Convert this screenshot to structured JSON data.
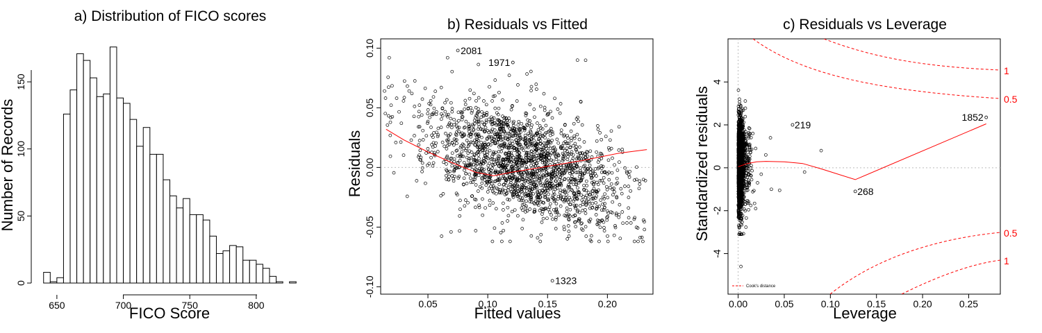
{
  "chart_data": [
    {
      "type": "bar",
      "title": "a) Distribution of FICO scores",
      "xlabel": "FICO Score",
      "ylabel": "Number of Records",
      "xlim": [
        637,
        833
      ],
      "ylim": [
        0,
        180
      ],
      "x_ticks": [
        650,
        700,
        750,
        800
      ],
      "y_ticks": [
        0,
        50,
        100,
        150
      ],
      "bin_width": 5,
      "bins_start": [
        640,
        645,
        650,
        655,
        660,
        665,
        670,
        675,
        680,
        685,
        690,
        695,
        700,
        705,
        710,
        715,
        720,
        725,
        730,
        735,
        740,
        745,
        750,
        755,
        760,
        765,
        770,
        775,
        780,
        785,
        790,
        795,
        800,
        805,
        810,
        815,
        820,
        825
      ],
      "values": [
        8,
        1,
        4,
        126,
        144,
        171,
        166,
        153,
        139,
        141,
        176,
        138,
        134,
        122,
        102,
        116,
        96,
        96,
        77,
        65,
        56,
        63,
        51,
        51,
        47,
        35,
        22,
        24,
        28,
        27,
        17,
        17,
        14,
        11,
        5,
        1,
        0,
        1
      ]
    },
    {
      "type": "scatter",
      "title": "b) Residuals vs Fitted",
      "xlabel": "Fitted values",
      "ylabel": "Residuals",
      "xlim": [
        0.0105,
        0.2381
      ],
      "ylim": [
        -0.1062,
        0.1078
      ],
      "x_ticks": [
        "0.05",
        "0.10",
        "0.15",
        "0.20"
      ],
      "y_ticks": [
        "-0.10",
        "-0.05",
        "0.00",
        "0.05",
        "0.10"
      ],
      "zero_line": 0,
      "labeled_points": [
        {
          "label": "2081",
          "x": 0.075,
          "y": 0.098
        },
        {
          "label": "1971",
          "x": 0.121,
          "y": 0.088
        },
        {
          "label": "1323",
          "x": 0.154,
          "y": -0.095
        }
      ],
      "smoother": [
        [
          0.015,
          0.032
        ],
        [
          0.03,
          0.023
        ],
        [
          0.05,
          0.013
        ],
        [
          0.07,
          0.004
        ],
        [
          0.09,
          -0.004
        ],
        [
          0.105,
          -0.007
        ],
        [
          0.12,
          -0.004
        ],
        [
          0.15,
          0.001
        ],
        [
          0.18,
          0.006
        ],
        [
          0.21,
          0.012
        ],
        [
          0.233,
          0.015
        ]
      ],
      "n_points": 2000
    },
    {
      "type": "scatter",
      "title": "c) Residuals vs Leverage",
      "xlabel": "Leverage",
      "ylabel": "Standardized residuals",
      "xlim": [
        -0.011,
        0.2843
      ],
      "ylim": [
        -5.89,
        6.01
      ],
      "x_ticks": [
        "0.00",
        "0.05",
        "0.10",
        "0.15",
        "0.20",
        "0.25"
      ],
      "y_ticks": [
        "-4",
        "-2",
        "0",
        "2",
        "4"
      ],
      "zero_line": 0,
      "labeled_points": [
        {
          "label": "219",
          "x": 0.059,
          "y": 2.0
        },
        {
          "label": "1852",
          "x": 0.269,
          "y": 2.35
        },
        {
          "label": "268",
          "x": 0.127,
          "y": -1.1
        }
      ],
      "smoother": [
        [
          0.0,
          0.05
        ],
        [
          0.01,
          0.2
        ],
        [
          0.02,
          0.28
        ],
        [
          0.03,
          0.3
        ],
        [
          0.05,
          0.28
        ],
        [
          0.07,
          0.2
        ],
        [
          0.09,
          -0.05
        ],
        [
          0.127,
          -0.55
        ],
        [
          0.269,
          2.05
        ]
      ],
      "cooks_distance_labels": [
        "1",
        "0.5",
        "0.5",
        "1"
      ],
      "legend": "Cook's distance",
      "n_points": 2000
    }
  ]
}
